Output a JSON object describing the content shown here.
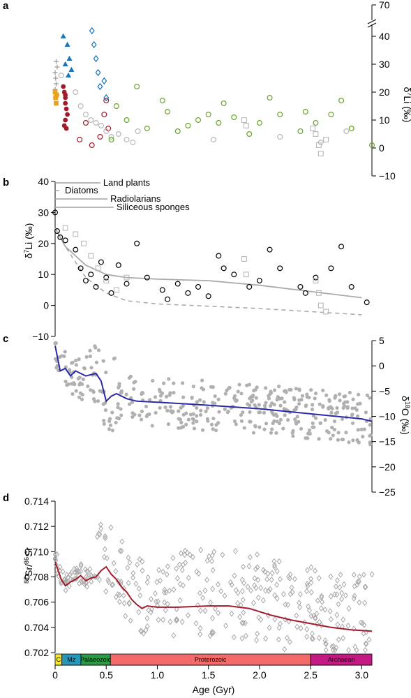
{
  "chart_data": [
    {
      "panel": "a",
      "type": "scatter",
      "ylabel": "δ7Li (‰)",
      "y_ticks": [
        -10,
        0,
        10,
        20,
        30,
        40,
        70
      ],
      "axis_break": "between 40 and 70",
      "series": [
        {
          "color": "#9a9a9a",
          "marker": "cross",
          "x": [
            0.0,
            0.005,
            0.01,
            0.02,
            0.0,
            0.01,
            0.02
          ],
          "y": [
            27,
            25,
            23,
            29,
            21,
            31,
            19
          ]
        },
        {
          "color": "#e8a21c",
          "marker": "square",
          "x": [
            0.0,
            0.005,
            0.01,
            0.015
          ],
          "y": [
            20,
            18,
            16,
            19
          ]
        },
        {
          "color": "#a01c2c",
          "marker": "filled-circle",
          "x": [
            0.08,
            0.09,
            0.1,
            0.1,
            0.11,
            0.12,
            0.1,
            0.09,
            0.11,
            0.1
          ],
          "y": [
            22,
            20,
            18,
            16,
            14,
            12,
            10,
            8,
            7,
            19
          ]
        },
        {
          "color": "#a01c2c",
          "marker": "open-circle",
          "x": [
            0.24,
            0.3,
            0.36,
            0.44,
            0.48,
            0.5,
            0.52
          ],
          "y": [
            3,
            9,
            1,
            4,
            12,
            17,
            7
          ]
        },
        {
          "color": "#1a74b8",
          "marker": "filled-triangle",
          "x": [
            0.08,
            0.12,
            0.14,
            0.16,
            0.13,
            0.1
          ],
          "y": [
            40,
            37,
            32,
            28,
            26,
            30
          ]
        },
        {
          "color": "#1a74b8",
          "marker": "open-diamond",
          "x": [
            0.36,
            0.38,
            0.4,
            0.42,
            0.44,
            0.46,
            0.48,
            0.5
          ],
          "y": [
            42,
            37,
            32,
            27,
            22,
            67,
            24,
            18
          ]
        },
        {
          "color": "#b8b8b8",
          "marker": "open-circle",
          "x": [
            0.06,
            0.2,
            0.25,
            0.3,
            0.35,
            0.4,
            0.45,
            0.5,
            0.55,
            0.62,
            0.7,
            0.76,
            0.81,
            1.55,
            2.2,
            2.6,
            2.85
          ],
          "y": [
            26,
            20,
            15,
            12,
            10,
            9,
            8,
            6,
            4,
            5,
            3,
            2,
            6,
            3,
            4,
            2,
            6
          ]
        },
        {
          "color": "#b8b8b8",
          "marker": "open-square",
          "x": [
            2.55,
            2.65,
            2.58,
            2.52,
            2.6,
            1.85,
            1.87
          ],
          "y": [
            5,
            3,
            1,
            7,
            -2,
            10,
            8
          ]
        },
        {
          "color": "#6aa428",
          "marker": "open-circle",
          "x": [
            0.55,
            0.6,
            0.7,
            0.8,
            0.9,
            1.05,
            1.1,
            1.2,
            1.3,
            1.4,
            1.5,
            1.6,
            1.65,
            1.75,
            1.9,
            2.0,
            2.1,
            2.2,
            2.4,
            2.45,
            2.55,
            2.7,
            2.8,
            2.9,
            3.1
          ],
          "y": [
            3,
            15,
            10,
            22,
            7,
            17,
            13,
            6,
            8,
            10,
            12,
            9,
            16,
            11,
            5,
            9,
            18,
            12,
            6,
            13,
            9,
            12,
            17,
            7,
            1
          ]
        }
      ]
    },
    {
      "panel": "b",
      "type": "scatter",
      "ylabel": "δ7Li (‰)",
      "ylim": [
        -10,
        40
      ],
      "y_ticks": [
        -10,
        0,
        10,
        20,
        30,
        40
      ],
      "annotations": [
        {
          "text": "Land plants",
          "age": 0.47
        },
        {
          "text": "Diatoms",
          "age": 0.09
        },
        {
          "text": "Radiolarians",
          "age": 0.54
        },
        {
          "text": "Siliceous sponges",
          "age": 0.6
        }
      ],
      "series": [
        {
          "color": "#000000",
          "marker": "open-circle",
          "x": [
            0.0,
            0.02,
            0.05,
            0.1,
            0.2,
            0.25,
            0.3,
            0.35,
            0.4,
            0.45,
            0.5,
            0.55,
            0.62,
            0.7,
            0.8,
            0.9,
            1.05,
            1.1,
            1.2,
            1.3,
            1.4,
            1.5,
            1.6,
            1.65,
            1.75,
            1.9,
            2.0,
            2.1,
            2.2,
            2.4,
            2.45,
            2.55,
            2.7,
            2.8,
            2.9,
            3.05
          ],
          "y": [
            30,
            24,
            22,
            21,
            18,
            12,
            8,
            10,
            6,
            14,
            9,
            4,
            13,
            7,
            20,
            9,
            5,
            2,
            7,
            4,
            6,
            3,
            16,
            12,
            10,
            6,
            8,
            18,
            12,
            6,
            4,
            9,
            12,
            19,
            6,
            1
          ]
        },
        {
          "color": "#b8b8b8",
          "marker": "open-square",
          "x": [
            0.1,
            0.2,
            0.28,
            0.35,
            0.42,
            0.5,
            0.6,
            0.7,
            1.85,
            1.87,
            2.55,
            2.58,
            2.6,
            2.65
          ],
          "y": [
            25,
            23,
            20,
            16,
            12,
            8,
            5,
            9,
            15,
            10,
            8,
            4,
            0,
            -2
          ]
        }
      ],
      "trend_solid": {
        "x": [
          0,
          0.1,
          0.3,
          0.5,
          0.7,
          1.0,
          1.5,
          2.0,
          2.5,
          3.0
        ],
        "y": [
          25,
          19,
          13,
          10,
          9,
          8.5,
          8,
          6.5,
          4.5,
          2.5
        ]
      },
      "trend_dashed": {
        "x": [
          0,
          0.1,
          0.3,
          0.5,
          0.7,
          1.0,
          2.0,
          3.0
        ],
        "y": [
          25,
          19,
          9,
          4,
          1.5,
          0.5,
          -1,
          -3
        ]
      }
    },
    {
      "panel": "c",
      "type": "scatter",
      "ylabel": "δ18O (‰)",
      "ylim": [
        -25,
        5
      ],
      "y_ticks": [
        -25,
        -20,
        -15,
        -10,
        -5,
        0,
        5
      ],
      "trend": {
        "x": [
          0,
          0.02,
          0.05,
          0.1,
          0.15,
          0.2,
          0.3,
          0.4,
          0.45,
          0.5,
          0.55,
          0.6,
          0.7,
          0.8,
          1.0,
          1.5,
          2.0,
          2.5,
          3.0,
          3.1
        ],
        "y": [
          4,
          2,
          -1,
          -0.5,
          -2,
          -1,
          -2,
          -1.5,
          -3,
          -7,
          -6,
          -5.5,
          -6.5,
          -7,
          -7.2,
          -7.8,
          -8.5,
          -9.5,
          -10.5,
          -11
        ]
      },
      "scatter_color": "#b0b0b0",
      "trend_color": "#2a2aa8"
    },
    {
      "panel": "d",
      "type": "scatter",
      "ylabel": "87Sr/86Sr",
      "ylim": [
        0.702,
        0.714
      ],
      "y_ticks": [
        "0.702",
        "0.704",
        "0.706",
        "0.708",
        "0.710",
        "0.712",
        "0.714"
      ],
      "xlabel": "Age (Gyr)",
      "xlim": [
        0,
        3.1
      ],
      "x_ticks": [
        "0",
        "0.5",
        "1.0",
        "1.5",
        "2.0",
        "2.5",
        "3.0"
      ],
      "trend": {
        "x": [
          0,
          0.03,
          0.06,
          0.1,
          0.15,
          0.2,
          0.25,
          0.3,
          0.35,
          0.4,
          0.45,
          0.5,
          0.55,
          0.6,
          0.65,
          0.7,
          0.75,
          0.8,
          0.85,
          0.9,
          1.0,
          1.2,
          1.5,
          1.7,
          1.9,
          2.1,
          2.3,
          2.5,
          2.7,
          2.9,
          3.1
        ],
        "y": [
          0.7092,
          0.7085,
          0.7078,
          0.7073,
          0.7076,
          0.7078,
          0.7081,
          0.7077,
          0.7079,
          0.708,
          0.7085,
          0.7088,
          0.7082,
          0.7078,
          0.7072,
          0.7068,
          0.7062,
          0.7058,
          0.7055,
          0.7057,
          0.7056,
          0.7056,
          0.7057,
          0.7057,
          0.7055,
          0.705,
          0.7046,
          0.7043,
          0.704,
          0.7038,
          0.7037
        ]
      },
      "scatter_color": "#a8a8a8",
      "trend_color": "#a01c2c",
      "eras": [
        {
          "label": "C",
          "from": 0.0,
          "to": 0.066,
          "color": "#f2ea2b"
        },
        {
          "label": "Mz",
          "from": 0.066,
          "to": 0.252,
          "color": "#2a96b8"
        },
        {
          "label": "Palaeozoic",
          "from": 0.252,
          "to": 0.541,
          "color": "#2e9a48"
        },
        {
          "label": "Proterozoic",
          "from": 0.541,
          "to": 2.5,
          "color": "#f26a6a"
        },
        {
          "label": "Archaean",
          "from": 2.5,
          "to": 3.1,
          "color": "#c41a84"
        }
      ]
    }
  ]
}
